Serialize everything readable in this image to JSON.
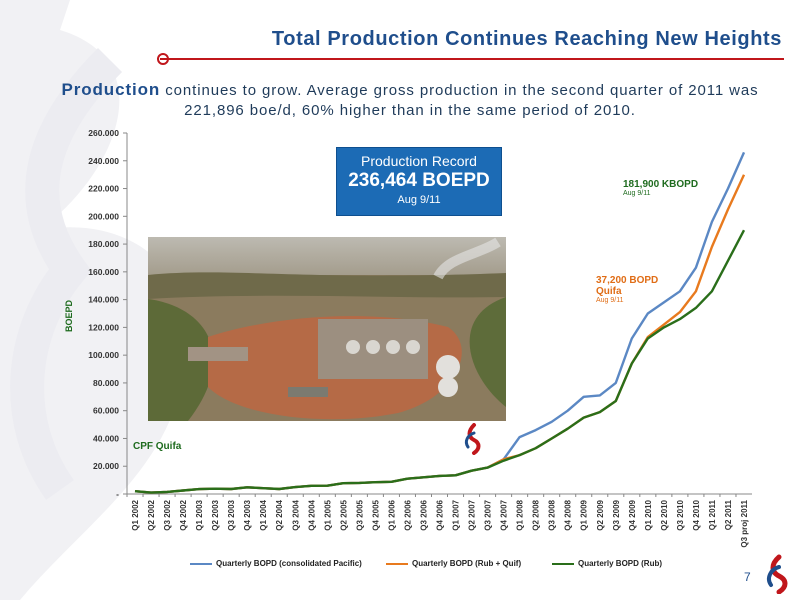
{
  "slide": {
    "title": "Total Production Continues Reaching New Heights",
    "subtitle_lead": "Production",
    "subtitle_rest": " continues to grow. Average gross production in the second quarter of 2011 was 221,896 boe/d, 60% higher than in the same period of 2010.",
    "page_number": "7"
  },
  "record_box": {
    "line1": "Production Record",
    "line2": "236,464 BOEPD",
    "line3": "Aug 9/11"
  },
  "annotations": {
    "rub_value": "181,900 KBOPD",
    "rub_date": "Aug 9/11",
    "quifa_value": "37,200 BOPD",
    "quifa_name": "Quifa",
    "quifa_date": "Aug 9/11",
    "cpf_label": "CPF Quifa"
  },
  "colors": {
    "title": "#1f4e8c",
    "accent_red": "#c0161b",
    "record_box": "#1c6bb5",
    "series_consolidated": "#5b88c4",
    "series_rub_quif": "#e87a1e",
    "series_rub": "#2a6e1a"
  },
  "icons": [
    "pacific-logo-icon",
    "divider-dot-icon"
  ],
  "chart_data": {
    "type": "line",
    "ylabel": "BOEPD",
    "xlabel": "",
    "ylim": [
      0,
      260000
    ],
    "yticks": [
      "-",
      "20.000",
      "40.000",
      "60.000",
      "80.000",
      "100.000",
      "120.000",
      "140.000",
      "160.000",
      "180.000",
      "200.000",
      "220.000",
      "240.000",
      "260.000"
    ],
    "categories": [
      "Q1 2002",
      "Q2 2002",
      "Q3 2002",
      "Q4 2002",
      "Q1 2003",
      "Q2 2003",
      "Q3 2003",
      "Q4 2003",
      "Q1 2004",
      "Q2 2004",
      "Q3 2004",
      "Q4 2004",
      "Q1 2005",
      "Q2 2005",
      "Q3 2005",
      "Q4 2005",
      "Q1 2006",
      "Q2 2006",
      "Q3 2006",
      "Q4 2006",
      "Q1 2007",
      "Q2 2007",
      "Q3 2007",
      "Q4 2007",
      "Q1 2008",
      "Q2 2008",
      "Q3 2008",
      "Q4 2008",
      "Q1 2009",
      "Q2 2009",
      "Q3 2009",
      "Q4 2009",
      "Q1 2010",
      "Q2 2010",
      "Q3 2010",
      "Q4 2010",
      "Q1 2011",
      "Q2 2011",
      "Q3 proj 2011"
    ],
    "grid": false,
    "legend_position": "bottom",
    "series": [
      {
        "name": "Quarterly BOPD (consolidated Pacific)",
        "values": [
          2000,
          1000,
          1500,
          2500,
          3500,
          3800,
          3600,
          4800,
          4200,
          3600,
          5000,
          5900,
          6000,
          7800,
          8000,
          8500,
          8800,
          11000,
          12000,
          13000,
          13500,
          16800,
          19000,
          25000,
          41000,
          46000,
          52000,
          60000,
          70000,
          71000,
          80000,
          112000,
          130000,
          138000,
          146000,
          163000,
          196000,
          220000,
          246000
        ]
      },
      {
        "name": "Quarterly BOPD (Rub + Quif)",
        "values": [
          2000,
          1000,
          1500,
          2500,
          3500,
          3800,
          3600,
          4800,
          4200,
          3600,
          5000,
          5900,
          6000,
          7800,
          8000,
          8500,
          8800,
          11000,
          12000,
          13000,
          13500,
          16800,
          19000,
          25000,
          28000,
          33000,
          40000,
          47000,
          55000,
          59000,
          67000,
          94000,
          113000,
          122000,
          131000,
          146000,
          178000,
          205000,
          230000
        ]
      },
      {
        "name": "Quarterly BOPD (Rub)",
        "values": [
          2000,
          1000,
          1500,
          2500,
          3500,
          3800,
          3600,
          4800,
          4200,
          3600,
          5000,
          5900,
          6000,
          7800,
          8000,
          8500,
          8800,
          11000,
          12000,
          13000,
          13500,
          16800,
          19000,
          24000,
          28000,
          33000,
          40000,
          47000,
          55000,
          59000,
          67000,
          94000,
          112000,
          120000,
          126000,
          134000,
          146000,
          168000,
          190000
        ]
      }
    ]
  }
}
